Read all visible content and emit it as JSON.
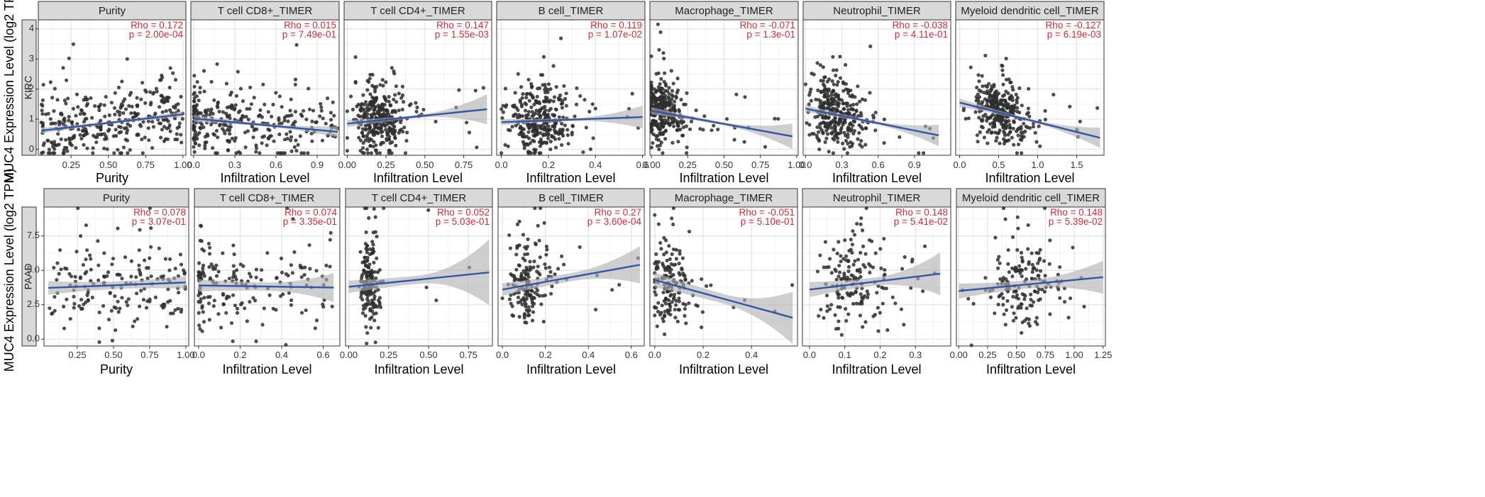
{
  "colors": {
    "strip_fill": "#d9d9d9",
    "grid_major": "#e3e3e3",
    "grid_minor": "#f1f1f1",
    "points": "#2e2e2e",
    "fit_line": "#2f56a6",
    "ci_band": "#b0b0b0",
    "stat_text": "#cc2a36"
  },
  "chart_data": [
    {
      "type": "scatter",
      "row": 0,
      "row_label": "KIRC",
      "ylabel": "MUC4 Expression Level (log2 TPM)",
      "ylim": [
        -0.2,
        4.3
      ],
      "yticks": [
        0,
        1,
        2,
        3,
        4
      ],
      "ytick_labels": [
        "0",
        "1",
        "2",
        "3",
        "4"
      ],
      "panels": [
        {
          "title": "Purity",
          "xlabel": "Purity",
          "rho_text": "Rho = 0.172",
          "p_text": "p = 2.00e-04",
          "xlim": [
            0.03,
            1.02
          ],
          "xticks": [
            0.25,
            0.5,
            0.75,
            1.0
          ],
          "xtick_labels": [
            "0.25",
            "0.50",
            "0.75",
            "1.00"
          ],
          "fit": [
            [
              0.05,
              0.62
            ],
            [
              1.0,
              1.16
            ]
          ],
          "ci": [
            0.1,
            0.045,
            0.1
          ],
          "n": 330,
          "xdist": "uniform",
          "xmin": 0.05,
          "xmax": 1.0,
          "noise": 0.7,
          "seed": 11
        },
        {
          "title": "T cell CD8+_TIMER",
          "xlabel": "Infiltration Level",
          "rho_text": "Rho = 0.015",
          "p_text": "p = 7.49e-01",
          "xlim": [
            -0.02,
            1.06
          ],
          "xticks": [
            0.0,
            0.3,
            0.6,
            0.9
          ],
          "xtick_labels": [
            "0.0",
            "0.3",
            "0.6",
            "0.9"
          ],
          "fit": [
            [
              0.0,
              1.02
            ],
            [
              1.05,
              0.58
            ]
          ],
          "ci": [
            0.12,
            0.05,
            0.18
          ],
          "n": 300,
          "xdist": "skew",
          "xmin": 0.0,
          "xmax": 1.05,
          "noise": 0.7,
          "seed": 23
        },
        {
          "title": "T cell CD4+_TIMER",
          "xlabel": "Infiltration Level",
          "rho_text": "Rho = 0.147",
          "p_text": "p = 1.55e-03",
          "xlim": [
            -0.02,
            0.93
          ],
          "xticks": [
            0.0,
            0.25,
            0.5,
            0.75
          ],
          "xtick_labels": [
            "0.00",
            "0.25",
            "0.50",
            "0.75"
          ],
          "fit": [
            [
              0.0,
              0.85
            ],
            [
              0.9,
              1.33
            ]
          ],
          "ci": [
            0.12,
            0.05,
            0.5
          ],
          "n": 330,
          "xdist": "cluster",
          "xmin": 0.0,
          "xmax": 0.9,
          "center": 0.17,
          "spread": 0.1,
          "noise": 0.75,
          "seed": 37
        },
        {
          "title": "B cell_TIMER",
          "xlabel": "Infiltration Level",
          "rho_text": "Rho = 0.119",
          "p_text": "p = 1.07e-02",
          "xlim": [
            -0.02,
            0.61
          ],
          "xticks": [
            0.0,
            0.2,
            0.4,
            0.6
          ],
          "xtick_labels": [
            "0.0",
            "0.2",
            "0.4",
            "0.6"
          ],
          "fit": [
            [
              0.0,
              0.9
            ],
            [
              0.6,
              1.07
            ]
          ],
          "ci": [
            0.1,
            0.05,
            0.38
          ],
          "n": 320,
          "xdist": "cluster",
          "xmin": 0.0,
          "xmax": 0.6,
          "center": 0.14,
          "spread": 0.09,
          "noise": 0.72,
          "seed": 41
        },
        {
          "title": "Macrophage_TIMER",
          "xlabel": "Infiltration Level",
          "rho_text": "Rho = -0.071",
          "p_text": "p = 1.3e-01",
          "xlim": [
            -0.01,
            1.01
          ],
          "xticks": [
            0.0,
            0.25,
            0.5,
            0.75,
            1.0
          ],
          "xtick_labels": [
            "0.00",
            "0.25",
            "0.50",
            "0.75",
            "1.00"
          ],
          "fit": [
            [
              0.0,
              1.28
            ],
            [
              0.97,
              0.43
            ]
          ],
          "ci": [
            0.12,
            0.05,
            0.42
          ],
          "n": 320,
          "xdist": "cluster",
          "xmin": 0.0,
          "xmax": 0.97,
          "center": 0.05,
          "spread": 0.08,
          "noise": 0.7,
          "seed": 53
        },
        {
          "title": "Neutrophil_TIMER",
          "xlabel": "Infiltration Level",
          "rho_text": "Rho = -0.038",
          "p_text": "p = 4.11e-01",
          "xlim": [
            -0.02,
            1.2
          ],
          "xticks": [
            0.0,
            0.3,
            0.6,
            0.9
          ],
          "xtick_labels": [
            "0.0",
            "0.3",
            "0.6",
            "0.9"
          ],
          "fit": [
            [
              0.0,
              1.35
            ],
            [
              1.1,
              0.46
            ]
          ],
          "ci": [
            0.12,
            0.05,
            0.36
          ],
          "n": 330,
          "xdist": "cluster",
          "xmin": 0.0,
          "xmax": 1.1,
          "center": 0.2,
          "spread": 0.14,
          "noise": 0.72,
          "seed": 67
        },
        {
          "title": "Myeloid dendritic cell_TIMER",
          "xlabel": "Infiltration Level",
          "rho_text": "Rho = -0.127",
          "p_text": "p = 6.19e-03",
          "xlim": [
            -0.05,
            1.85
          ],
          "xticks": [
            0.0,
            0.5,
            1.0,
            1.5
          ],
          "xtick_labels": [
            "0.0",
            "0.5",
            "1.0",
            "1.5"
          ],
          "fit": [
            [
              0.0,
              1.55
            ],
            [
              1.8,
              0.38
            ]
          ],
          "ci": [
            0.14,
            0.05,
            0.34
          ],
          "n": 330,
          "xdist": "cluster",
          "xmin": 0.0,
          "xmax": 1.8,
          "center": 0.45,
          "spread": 0.22,
          "noise": 0.72,
          "seed": 79
        }
      ]
    },
    {
      "type": "scatter",
      "row": 1,
      "row_label": "PAAD",
      "ylabel": "MUC4 Expression Level (log2 TPM)",
      "ylim": [
        -0.5,
        9.6
      ],
      "yticks": [
        0.0,
        2.5,
        5.0,
        7.5
      ],
      "ytick_labels": [
        "0.0",
        "2.5",
        "5.0",
        "7.5"
      ],
      "panels": [
        {
          "title": "Purity",
          "xlabel": "Purity",
          "rho_text": "Rho = 0.078",
          "p_text": "p = 3.07e-01",
          "xlim": [
            0.02,
            1.02
          ],
          "xticks": [
            0.25,
            0.5,
            0.75,
            1.0
          ],
          "xtick_labels": [
            "0.25",
            "0.50",
            "0.75",
            "1.00"
          ],
          "fit": [
            [
              0.05,
              3.72
            ],
            [
              1.0,
              4.12
            ]
          ],
          "ci": [
            0.5,
            0.28,
            0.45
          ],
          "n": 170,
          "xdist": "uniform",
          "xmin": 0.05,
          "xmax": 1.0,
          "noise": 2.0,
          "seed": 91
        },
        {
          "title": "T cell CD8+_TIMER",
          "xlabel": "Infiltration Level",
          "rho_text": "Rho = 0.074",
          "p_text": "p = 3.35e-01",
          "xlim": [
            -0.02,
            0.68
          ],
          "xticks": [
            0.0,
            0.2,
            0.4,
            0.6
          ],
          "xtick_labels": [
            "0.0",
            "0.2",
            "0.4",
            "0.6"
          ],
          "fit": [
            [
              0.0,
              3.9
            ],
            [
              0.65,
              3.75
            ]
          ],
          "ci": [
            0.45,
            0.3,
            1.05
          ],
          "n": 170,
          "xdist": "skew",
          "xmin": 0.0,
          "xmax": 0.65,
          "noise": 2.0,
          "seed": 103
        },
        {
          "title": "T cell CD4+_TIMER",
          "xlabel": "Infiltration Level",
          "rho_text": "Rho = 0.052",
          "p_text": "p = 5.03e-01",
          "xlim": [
            -0.02,
            0.9
          ],
          "xticks": [
            0.0,
            0.25,
            0.5,
            0.75
          ],
          "xtick_labels": [
            "0.00",
            "0.25",
            "0.50",
            "0.75"
          ],
          "fit": [
            [
              0.0,
              3.8
            ],
            [
              0.88,
              4.85
            ]
          ],
          "ci": [
            0.45,
            0.3,
            2.4
          ],
          "n": 170,
          "xdist": "cluster",
          "xmin": 0.0,
          "xmax": 0.88,
          "center": 0.12,
          "spread": 0.04,
          "noise": 2.0,
          "seed": 107
        },
        {
          "title": "B cell_TIMER",
          "xlabel": "Infiltration Level",
          "rho_text": "Rho = 0.27",
          "p_text": "p = 3.60e-04",
          "xlim": [
            -0.02,
            0.66
          ],
          "xticks": [
            0.0,
            0.2,
            0.4,
            0.6
          ],
          "xtick_labels": [
            "0.0",
            "0.2",
            "0.4",
            "0.6"
          ],
          "fit": [
            [
              0.0,
              3.6
            ],
            [
              0.64,
              5.4
            ]
          ],
          "ci": [
            0.45,
            0.3,
            1.35
          ],
          "n": 170,
          "xdist": "cluster",
          "xmin": 0.0,
          "xmax": 0.64,
          "center": 0.1,
          "spread": 0.06,
          "noise": 2.0,
          "seed": 113
        },
        {
          "title": "Macrophage_TIMER",
          "xlabel": "Infiltration Level",
          "rho_text": "Rho = -0.051",
          "p_text": "p = 5.10e-01",
          "xlim": [
            -0.02,
            0.59
          ],
          "xticks": [
            0.0,
            0.2,
            0.4
          ],
          "xtick_labels": [
            "0.0",
            "0.2",
            "0.4"
          ],
          "fit": [
            [
              0.0,
              4.3
            ],
            [
              0.57,
              1.55
            ]
          ],
          "ci": [
            0.55,
            0.35,
            1.9
          ],
          "n": 170,
          "xdist": "cluster",
          "xmin": 0.0,
          "xmax": 0.57,
          "center": 0.04,
          "spread": 0.06,
          "noise": 2.0,
          "seed": 127
        },
        {
          "title": "Neutrophil_TIMER",
          "xlabel": "Infiltration Level",
          "rho_text": "Rho = 0.148",
          "p_text": "p = 5.41e-02",
          "xlim": [
            -0.02,
            0.4
          ],
          "xticks": [
            0.0,
            0.1,
            0.2,
            0.3
          ],
          "xtick_labels": [
            "0.0",
            "0.1",
            "0.2",
            "0.3"
          ],
          "fit": [
            [
              0.0,
              3.6
            ],
            [
              0.37,
              4.75
            ]
          ],
          "ci": [
            0.55,
            0.3,
            1.55
          ],
          "n": 170,
          "xdist": "cluster",
          "xmin": 0.0,
          "xmax": 0.37,
          "center": 0.11,
          "spread": 0.06,
          "noise": 2.0,
          "seed": 131
        },
        {
          "title": "Myeloid dendritic cell_TIMER",
          "xlabel": "Infiltration Level",
          "rho_text": "Rho = 0.148",
          "p_text": "p = 5.39e-02",
          "xlim": [
            -0.02,
            1.27
          ],
          "xticks": [
            0.0,
            0.25,
            0.5,
            0.75,
            1.0,
            1.25
          ],
          "xtick_labels": [
            "0.00",
            "0.25",
            "0.50",
            "0.75",
            "1.00",
            "1.25"
          ],
          "fit": [
            [
              0.0,
              3.5
            ],
            [
              1.25,
              4.5
            ]
          ],
          "ci": [
            0.55,
            0.3,
            1.2
          ],
          "n": 170,
          "xdist": "cluster",
          "xmin": 0.0,
          "xmax": 1.25,
          "center": 0.48,
          "spread": 0.2,
          "noise": 2.0,
          "seed": 137
        }
      ]
    }
  ]
}
